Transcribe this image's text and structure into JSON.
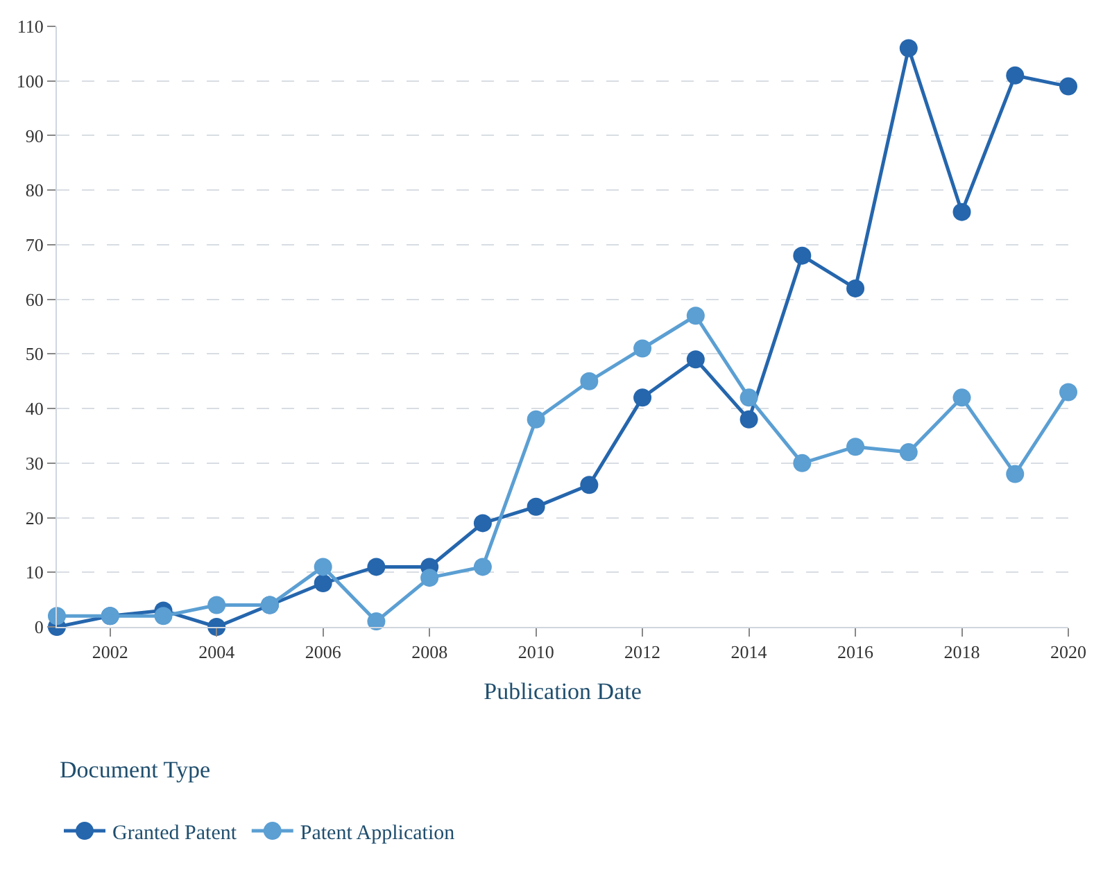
{
  "chart_data": {
    "type": "line",
    "xlabel": "Publication Date",
    "legend_title": "Document Type",
    "x": [
      2001,
      2002,
      2003,
      2004,
      2005,
      2006,
      2007,
      2008,
      2009,
      2010,
      2011,
      2012,
      2013,
      2014,
      2015,
      2016,
      2017,
      2018,
      2019,
      2020
    ],
    "series": [
      {
        "name": "Granted Patent",
        "color": "#2566ad",
        "values": [
          0,
          2,
          3,
          0,
          4,
          8,
          11,
          11,
          19,
          22,
          26,
          42,
          49,
          38,
          68,
          62,
          106,
          76,
          101,
          99
        ]
      },
      {
        "name": "Patent Application",
        "color": "#5b9fd3",
        "values": [
          2,
          2,
          2,
          4,
          4,
          11,
          1,
          9,
          11,
          38,
          45,
          51,
          57,
          42,
          30,
          33,
          32,
          42,
          28,
          43
        ]
      }
    ],
    "xlim": [
      2001,
      2020
    ],
    "xticks": [
      2002,
      2004,
      2006,
      2008,
      2010,
      2012,
      2014,
      2016,
      2018,
      2020
    ],
    "ylim": [
      0,
      110
    ],
    "yticks": [
      0,
      10,
      20,
      30,
      40,
      50,
      60,
      70,
      80,
      90,
      100,
      110
    ],
    "grid": "y",
    "legend": "bottom left",
    "marker": "circle",
    "line_style": "solid"
  }
}
